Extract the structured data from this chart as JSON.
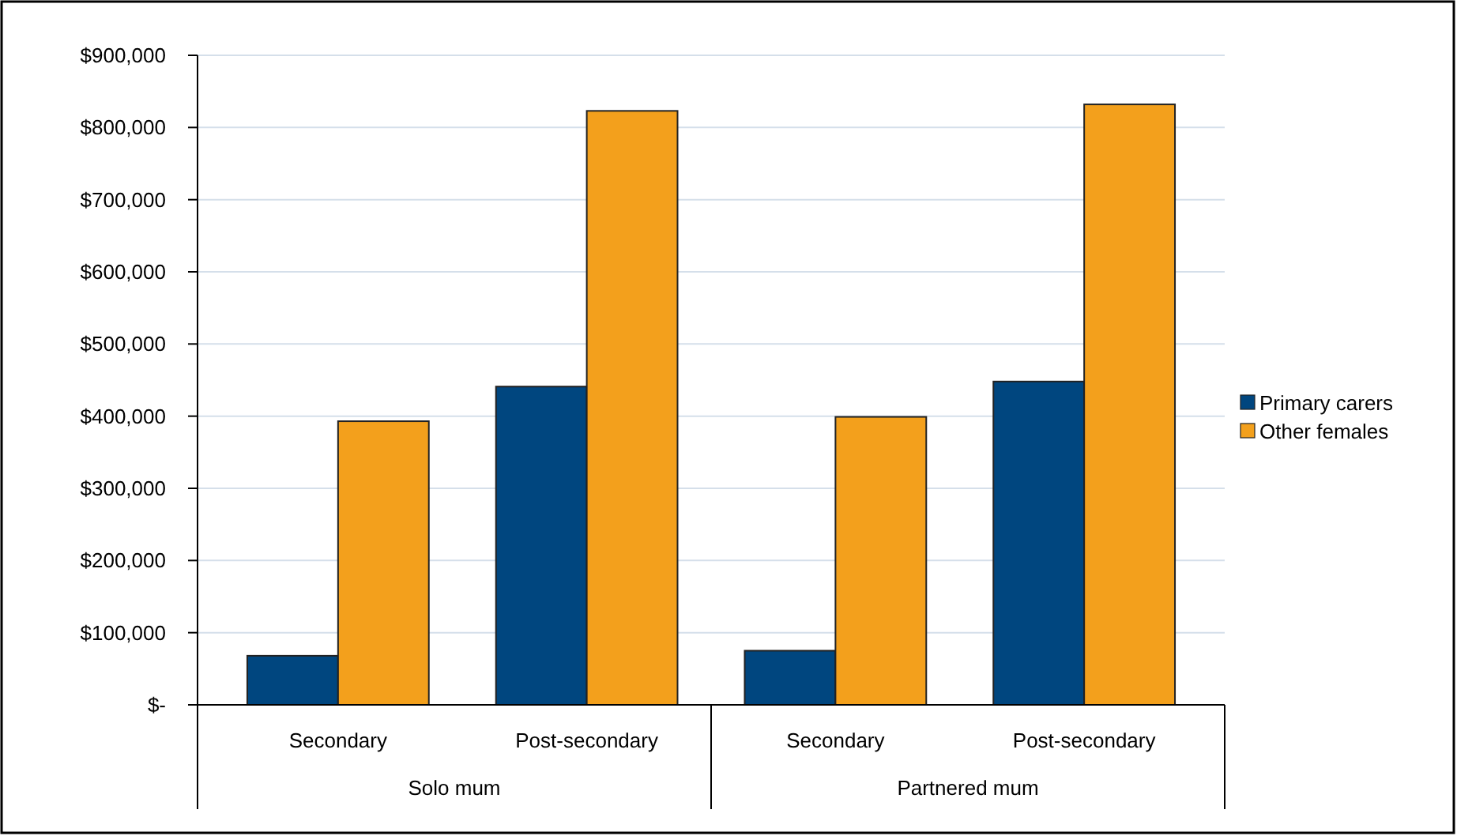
{
  "chart_data": {
    "type": "bar",
    "categories": [
      "Secondary",
      "Post-secondary",
      "Secondary",
      "Post-secondary"
    ],
    "series": [
      {
        "name": "Primary carers",
        "color": "#00467f",
        "values": [
          68000,
          441000,
          75000,
          448000
        ]
      },
      {
        "name": "Other females",
        "color": "#f3a01c",
        "values": [
          393000,
          823000,
          399000,
          832000
        ]
      }
    ],
    "ylim": [
      0,
      900000
    ],
    "yticks": [
      {
        "value": 0,
        "label": "$-"
      },
      {
        "value": 100000,
        "label": "$100,000"
      },
      {
        "value": 200000,
        "label": "$200,000"
      },
      {
        "value": 300000,
        "label": "$300,000"
      },
      {
        "value": 400000,
        "label": "$400,000"
      },
      {
        "value": 500000,
        "label": "$500,000"
      },
      {
        "value": 600000,
        "label": "$600,000"
      },
      {
        "value": 700000,
        "label": "$700,000"
      },
      {
        "value": 800000,
        "label": "$800,000"
      },
      {
        "value": 900000,
        "label": "$900,000"
      }
    ],
    "grid": "y",
    "legend": "right",
    "annotations": [
      "Solo mum",
      "Partnered mum"
    ]
  }
}
